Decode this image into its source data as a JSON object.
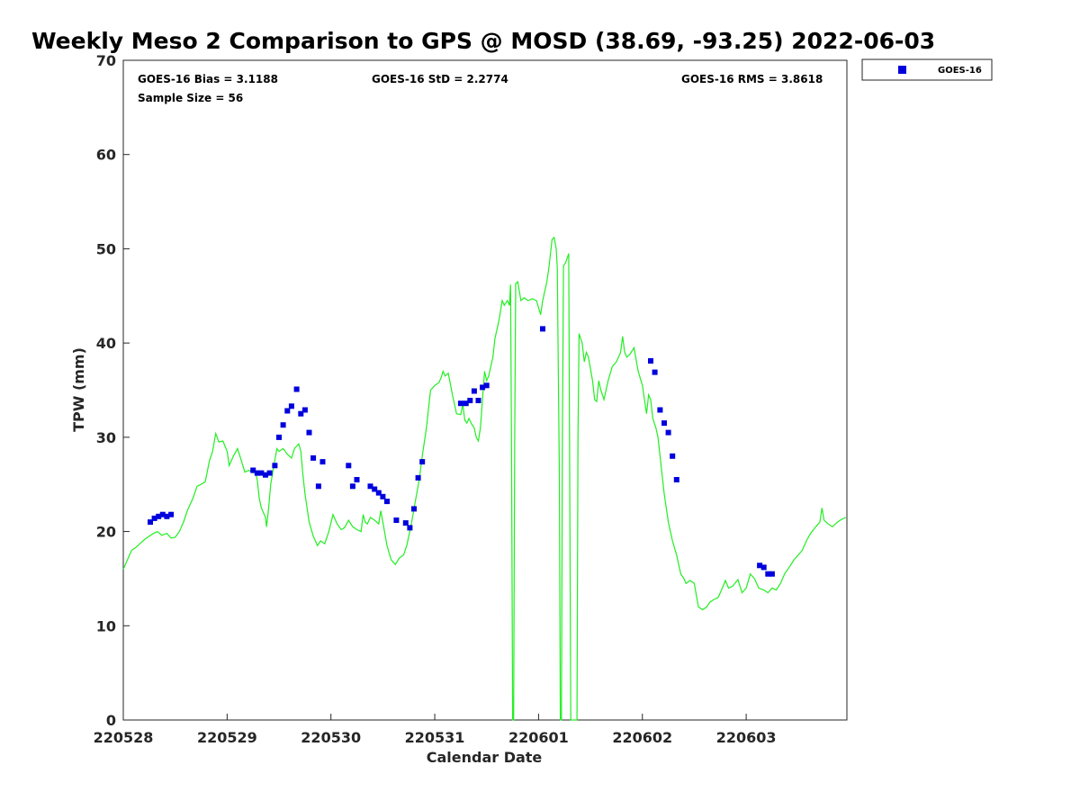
{
  "chart_data": {
    "type": "scatter",
    "title": "Weekly Meso 2 Comparison to GPS @ MOSD (38.69, -93.25) 2022-06-03",
    "xlabel": "Calendar Date",
    "ylabel": "TPW (mm)",
    "ylim": [
      0,
      70
    ],
    "xlim": [
      0,
      6.97
    ],
    "yticks": [
      "0",
      "10",
      "20",
      "30",
      "40",
      "50",
      "60",
      "70"
    ],
    "xticks": [
      "220528",
      "220529",
      "220530",
      "220531",
      "220601",
      "220602",
      "220603"
    ],
    "grid": false,
    "legend_position": "outside-top-right",
    "colors": {
      "goes": "#0000dd",
      "gps": "#22ee22"
    },
    "stats": {
      "bias": "GOES-16 Bias = 3.1188",
      "std": "GOES-16 StD = 2.2774",
      "rms": "GOES-16 RMS = 3.8618",
      "sample": "Sample Size = 56"
    },
    "series": [
      {
        "name": "GOES-16",
        "marker": "square",
        "points": [
          [
            0.26,
            21.0
          ],
          [
            0.3,
            21.4
          ],
          [
            0.34,
            21.6
          ],
          [
            0.38,
            21.8
          ],
          [
            0.42,
            21.6
          ],
          [
            0.46,
            21.8
          ],
          [
            1.25,
            26.5
          ],
          [
            1.29,
            26.2
          ],
          [
            1.33,
            26.2
          ],
          [
            1.37,
            26.0
          ],
          [
            1.41,
            26.2
          ],
          [
            1.46,
            27.0
          ],
          [
            1.5,
            30.0
          ],
          [
            1.54,
            31.3
          ],
          [
            1.58,
            32.8
          ],
          [
            1.62,
            33.3
          ],
          [
            1.67,
            35.1
          ],
          [
            1.71,
            32.5
          ],
          [
            1.75,
            32.9
          ],
          [
            1.79,
            30.5
          ],
          [
            1.83,
            27.8
          ],
          [
            1.88,
            24.8
          ],
          [
            1.92,
            27.4
          ],
          [
            2.17,
            27.0
          ],
          [
            2.21,
            24.8
          ],
          [
            2.25,
            25.5
          ],
          [
            2.38,
            24.8
          ],
          [
            2.42,
            24.5
          ],
          [
            2.46,
            24.1
          ],
          [
            2.5,
            23.7
          ],
          [
            2.54,
            23.2
          ],
          [
            2.63,
            21.2
          ],
          [
            2.72,
            20.9
          ],
          [
            2.76,
            20.4
          ],
          [
            2.8,
            22.4
          ],
          [
            2.84,
            25.7
          ],
          [
            2.88,
            27.4
          ],
          [
            3.25,
            33.6
          ],
          [
            3.3,
            33.6
          ],
          [
            3.34,
            33.9
          ],
          [
            3.38,
            34.9
          ],
          [
            3.42,
            33.9
          ],
          [
            3.46,
            35.3
          ],
          [
            3.5,
            35.5
          ],
          [
            4.04,
            41.5
          ],
          [
            5.08,
            38.1
          ],
          [
            5.12,
            36.9
          ],
          [
            5.17,
            32.9
          ],
          [
            5.21,
            31.5
          ],
          [
            5.25,
            30.5
          ],
          [
            5.29,
            28.0
          ],
          [
            5.33,
            25.5
          ],
          [
            6.13,
            16.4
          ],
          [
            6.17,
            16.2
          ],
          [
            6.21,
            15.5
          ],
          [
            6.25,
            15.5
          ]
        ]
      },
      {
        "name": "",
        "line": true,
        "points": [
          [
            0.0,
            16.0
          ],
          [
            0.04,
            17.0
          ],
          [
            0.08,
            18.0
          ],
          [
            0.12,
            18.3
          ],
          [
            0.17,
            18.8
          ],
          [
            0.21,
            19.2
          ],
          [
            0.25,
            19.5
          ],
          [
            0.29,
            19.8
          ],
          [
            0.33,
            20.0
          ],
          [
            0.37,
            19.6
          ],
          [
            0.42,
            19.8
          ],
          [
            0.46,
            19.3
          ],
          [
            0.5,
            19.4
          ],
          [
            0.54,
            20.0
          ],
          [
            0.58,
            21.0
          ],
          [
            0.62,
            22.3
          ],
          [
            0.67,
            23.5
          ],
          [
            0.71,
            24.8
          ],
          [
            0.75,
            25.0
          ],
          [
            0.79,
            25.3
          ],
          [
            0.83,
            27.5
          ],
          [
            0.86,
            28.5
          ],
          [
            0.89,
            30.4
          ],
          [
            0.92,
            29.5
          ],
          [
            0.96,
            29.6
          ],
          [
            1.0,
            28.5
          ],
          [
            1.02,
            27.0
          ],
          [
            1.06,
            28.0
          ],
          [
            1.1,
            28.8
          ],
          [
            1.13,
            27.8
          ],
          [
            1.17,
            26.3
          ],
          [
            1.21,
            26.5
          ],
          [
            1.25,
            26.2
          ],
          [
            1.27,
            26.5
          ],
          [
            1.29,
            25.5
          ],
          [
            1.31,
            23.5
          ],
          [
            1.33,
            22.5
          ],
          [
            1.35,
            22.0
          ],
          [
            1.37,
            21.5
          ],
          [
            1.38,
            20.5
          ],
          [
            1.4,
            22.5
          ],
          [
            1.42,
            25.0
          ],
          [
            1.45,
            27.0
          ],
          [
            1.48,
            28.8
          ],
          [
            1.5,
            28.5
          ],
          [
            1.54,
            28.8
          ],
          [
            1.58,
            28.2
          ],
          [
            1.62,
            27.8
          ],
          [
            1.65,
            28.8
          ],
          [
            1.69,
            29.3
          ],
          [
            1.71,
            28.5
          ],
          [
            1.73,
            26.0
          ],
          [
            1.75,
            24.0
          ],
          [
            1.79,
            21.0
          ],
          [
            1.83,
            19.5
          ],
          [
            1.87,
            18.5
          ],
          [
            1.9,
            19.0
          ],
          [
            1.94,
            18.7
          ],
          [
            1.98,
            20.0
          ],
          [
            2.02,
            21.8
          ],
          [
            2.06,
            20.8
          ],
          [
            2.1,
            20.2
          ],
          [
            2.13,
            20.4
          ],
          [
            2.17,
            21.2
          ],
          [
            2.21,
            20.5
          ],
          [
            2.25,
            20.2
          ],
          [
            2.29,
            20.0
          ],
          [
            2.31,
            21.8
          ],
          [
            2.33,
            21.0
          ],
          [
            2.35,
            20.8
          ],
          [
            2.38,
            21.5
          ],
          [
            2.42,
            21.2
          ],
          [
            2.46,
            20.8
          ],
          [
            2.48,
            22.2
          ],
          [
            2.5,
            21.0
          ],
          [
            2.54,
            18.5
          ],
          [
            2.58,
            17.0
          ],
          [
            2.62,
            16.5
          ],
          [
            2.66,
            17.2
          ],
          [
            2.7,
            17.5
          ],
          [
            2.73,
            18.5
          ],
          [
            2.77,
            20.5
          ],
          [
            2.81,
            23.0
          ],
          [
            2.85,
            25.5
          ],
          [
            2.88,
            28.0
          ],
          [
            2.92,
            31.0
          ],
          [
            2.96,
            35.0
          ],
          [
            3.0,
            35.5
          ],
          [
            3.04,
            35.8
          ],
          [
            3.06,
            36.3
          ],
          [
            3.08,
            37.0
          ],
          [
            3.1,
            36.5
          ],
          [
            3.13,
            36.8
          ],
          [
            3.17,
            34.5
          ],
          [
            3.21,
            32.5
          ],
          [
            3.25,
            32.4
          ],
          [
            3.27,
            33.5
          ],
          [
            3.29,
            31.8
          ],
          [
            3.31,
            31.5
          ],
          [
            3.33,
            32.0
          ],
          [
            3.35,
            31.5
          ],
          [
            3.38,
            31.0
          ],
          [
            3.4,
            30.0
          ],
          [
            3.42,
            29.6
          ],
          [
            3.44,
            31.0
          ],
          [
            3.46,
            34.0
          ],
          [
            3.48,
            37.0
          ],
          [
            3.5,
            36.0
          ],
          [
            3.52,
            36.5
          ],
          [
            3.54,
            37.5
          ],
          [
            3.56,
            38.5
          ],
          [
            3.58,
            40.5
          ],
          [
            3.62,
            42.5
          ],
          [
            3.65,
            44.5
          ],
          [
            3.67,
            44.0
          ],
          [
            3.7,
            44.5
          ],
          [
            3.72,
            44.0
          ],
          [
            3.73,
            46.2
          ],
          [
            3.74,
            28.0
          ],
          [
            3.75,
            0.0
          ],
          [
            3.76,
            0.0
          ],
          [
            3.77,
            30.0
          ],
          [
            3.78,
            46.3
          ],
          [
            3.8,
            46.5
          ],
          [
            3.83,
            44.5
          ],
          [
            3.86,
            44.8
          ],
          [
            3.9,
            44.5
          ],
          [
            3.94,
            44.7
          ],
          [
            3.98,
            44.5
          ],
          [
            4.02,
            43.0
          ],
          [
            4.04,
            44.5
          ],
          [
            4.08,
            46.5
          ],
          [
            4.1,
            48.0
          ],
          [
            4.13,
            51.0
          ],
          [
            4.15,
            51.2
          ],
          [
            4.17,
            50.0
          ],
          [
            4.18,
            48.0
          ],
          [
            4.2,
            26.0
          ],
          [
            4.21,
            0.0
          ],
          [
            4.22,
            0.0
          ],
          [
            4.23,
            30.0
          ],
          [
            4.24,
            48.2
          ],
          [
            4.26,
            48.5
          ],
          [
            4.29,
            49.5
          ],
          [
            4.3,
            26.0
          ],
          [
            4.31,
            0.0
          ],
          [
            4.37,
            0.0
          ],
          [
            4.38,
            30.0
          ],
          [
            4.39,
            41.0
          ],
          [
            4.42,
            40.0
          ],
          [
            4.44,
            38.0
          ],
          [
            4.46,
            39.0
          ],
          [
            4.48,
            38.5
          ],
          [
            4.52,
            36.0
          ],
          [
            4.54,
            34.0
          ],
          [
            4.56,
            33.8
          ],
          [
            4.58,
            36.0
          ],
          [
            4.6,
            35.0
          ],
          [
            4.63,
            34.0
          ],
          [
            4.67,
            36.0
          ],
          [
            4.71,
            37.5
          ],
          [
            4.75,
            38.0
          ],
          [
            4.79,
            39.0
          ],
          [
            4.81,
            40.7
          ],
          [
            4.83,
            39.0
          ],
          [
            4.85,
            38.5
          ],
          [
            4.88,
            38.8
          ],
          [
            4.92,
            39.5
          ],
          [
            4.96,
            37.0
          ],
          [
            5.0,
            35.5
          ],
          [
            5.04,
            32.5
          ],
          [
            5.06,
            34.5
          ],
          [
            5.08,
            34.0
          ],
          [
            5.1,
            32.0
          ],
          [
            5.13,
            31.0
          ],
          [
            5.15,
            30.0
          ],
          [
            5.17,
            28.0
          ],
          [
            5.21,
            24.0
          ],
          [
            5.25,
            21.0
          ],
          [
            5.29,
            19.0
          ],
          [
            5.33,
            17.5
          ],
          [
            5.37,
            15.5
          ],
          [
            5.4,
            15.0
          ],
          [
            5.42,
            14.5
          ],
          [
            5.46,
            14.8
          ],
          [
            5.5,
            14.5
          ],
          [
            5.54,
            12.0
          ],
          [
            5.58,
            11.7
          ],
          [
            5.62,
            12.0
          ],
          [
            5.65,
            12.5
          ],
          [
            5.69,
            12.8
          ],
          [
            5.73,
            13.0
          ],
          [
            5.77,
            14.0
          ],
          [
            5.8,
            14.8
          ],
          [
            5.83,
            14.0
          ],
          [
            5.87,
            14.2
          ],
          [
            5.92,
            14.9
          ],
          [
            5.96,
            13.5
          ],
          [
            6.0,
            14.0
          ],
          [
            6.04,
            15.5
          ],
          [
            6.08,
            15.0
          ],
          [
            6.12,
            14.0
          ],
          [
            6.17,
            13.8
          ],
          [
            6.21,
            13.5
          ],
          [
            6.25,
            14.0
          ],
          [
            6.29,
            13.8
          ],
          [
            6.33,
            14.5
          ],
          [
            6.37,
            15.5
          ],
          [
            6.42,
            16.3
          ],
          [
            6.46,
            17.0
          ],
          [
            6.5,
            17.5
          ],
          [
            6.54,
            18.0
          ],
          [
            6.58,
            19.0
          ],
          [
            6.62,
            19.8
          ],
          [
            6.67,
            20.5
          ],
          [
            6.71,
            21.0
          ],
          [
            6.73,
            22.5
          ],
          [
            6.75,
            21.2
          ],
          [
            6.79,
            20.8
          ],
          [
            6.83,
            20.5
          ],
          [
            6.88,
            21.0
          ],
          [
            6.92,
            21.3
          ],
          [
            6.96,
            21.5
          ]
        ]
      }
    ]
  }
}
